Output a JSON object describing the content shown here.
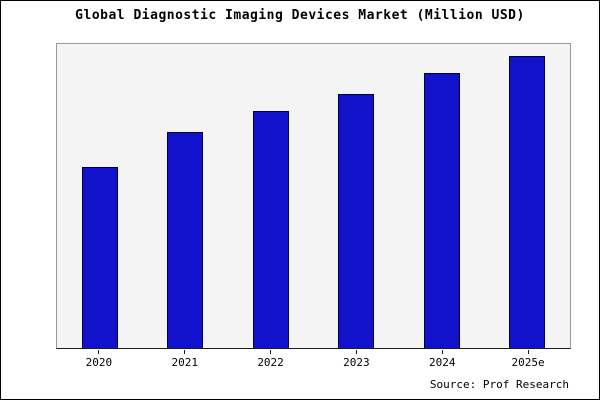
{
  "title": "Global Diagnostic Imaging Devices Market (Million USD)",
  "source": "Source: Prof Research",
  "chart_data": {
    "type": "bar",
    "title": "Global Diagnostic Imaging Devices Market (Million USD)",
    "categories": [
      "2020",
      "2021",
      "2022",
      "2023",
      "2024",
      "2025e"
    ],
    "values": [
      62,
      74,
      81,
      87,
      94,
      100
    ],
    "xlabel": "",
    "ylabel": "",
    "ylim": [
      0,
      104
    ],
    "grid": false,
    "legend": "none",
    "bar_color": "#1212cc",
    "bar_border": "#000030",
    "plot_bg": "#f4f4f4",
    "source": "Source: Prof Research"
  }
}
